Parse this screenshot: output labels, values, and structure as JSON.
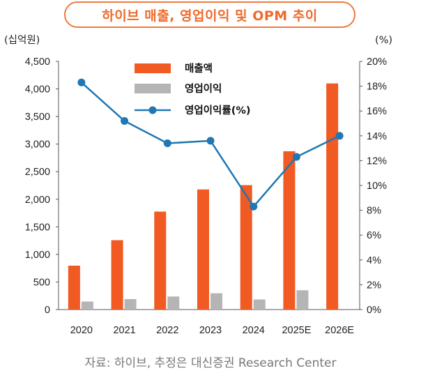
{
  "chart_data": {
    "type": "bar",
    "title": "하이브 매출, 영업이익 및 OPM 추이",
    "left_unit": "(십억원)",
    "right_unit": "(%)",
    "categories": [
      "2020",
      "2021",
      "2022",
      "2023",
      "2024",
      "2025E",
      "2026E"
    ],
    "series": [
      {
        "name": "매출액",
        "type": "bar",
        "axis": "left",
        "color": "#f15a22",
        "values": [
          796,
          1258,
          1776,
          2178,
          2256,
          2870,
          4100
        ]
      },
      {
        "name": "영업이익",
        "type": "bar",
        "axis": "left",
        "color": "#b5b5b5",
        "values": [
          146,
          190,
          237,
          296,
          184,
          350,
          0
        ]
      },
      {
        "name": "영업이익률(%)",
        "type": "line",
        "axis": "right",
        "color": "#1f77b4",
        "values": [
          18.3,
          15.2,
          13.4,
          13.6,
          8.3,
          12.3,
          14.0
        ]
      }
    ],
    "ylim_left": [
      0,
      4500
    ],
    "yticks_left": [
      "0",
      "500",
      "1,000",
      "1,500",
      "2,000",
      "2,500",
      "3,000",
      "3,500",
      "4,000",
      "4,500"
    ],
    "ylim_right": [
      0,
      20
    ],
    "yticks_right": [
      "0%",
      "2%",
      "4%",
      "6%",
      "8%",
      "10%",
      "12%",
      "14%",
      "16%",
      "18%",
      "20%"
    ],
    "legend_position": "top-left-inside",
    "grid": false
  },
  "source": "자료: 하이브, 추정은 대신증권 Research Center"
}
